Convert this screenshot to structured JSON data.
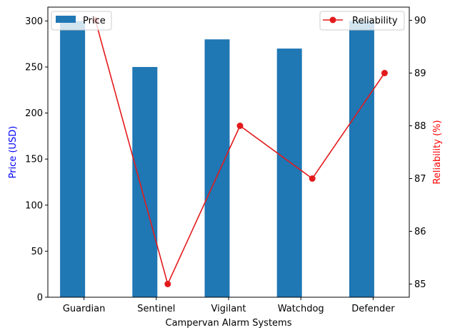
{
  "chart_data": {
    "type": "bar+line",
    "categories": [
      "Guardian",
      "Sentinel",
      "Vigilant",
      "Watchdog",
      "Defender"
    ],
    "series": [
      {
        "name": "Price",
        "type": "bar",
        "axis": "left",
        "values": [
          300,
          250,
          280,
          270,
          300
        ],
        "color": "#1f77b4"
      },
      {
        "name": "Reliability",
        "type": "line",
        "axis": "right",
        "values": [
          90,
          85,
          88,
          87,
          89
        ],
        "color": "#e31a1c",
        "marker": "circle"
      }
    ],
    "xlabel": "Campervan Alarm Systems",
    "ylabel_left": "Price (USD)",
    "ylabel_right": "Reliability (%)",
    "ylabel_left_color": "#0000ff",
    "ylabel_right_color": "#ff0000",
    "ylim_left": [
      0,
      315
    ],
    "yticks_left": [
      0,
      50,
      100,
      150,
      200,
      250,
      300
    ],
    "ylim_right": [
      84.75,
      90.25
    ],
    "yticks_right": [
      85,
      86,
      87,
      88,
      89,
      90
    ],
    "legend_left": {
      "position": "top-left",
      "label": "Price"
    },
    "legend_right": {
      "position": "top-right",
      "label": "Reliability"
    },
    "grid": false
  }
}
